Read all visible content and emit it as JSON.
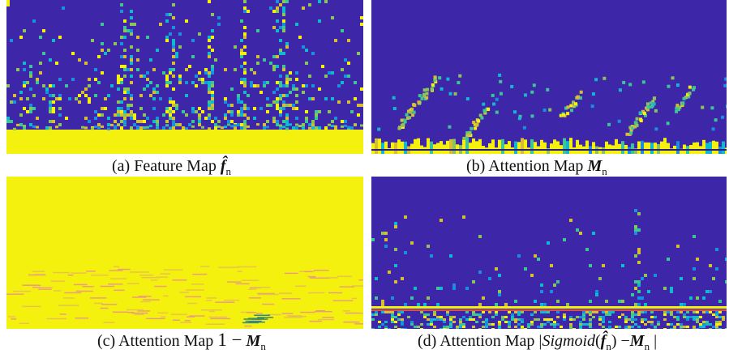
{
  "panels": [
    {
      "caption": {
        "label": "(a) Feature Map",
        "math": "f̂",
        "sub": "n"
      }
    },
    {
      "caption": {
        "label": "(b) Attention Map",
        "math": "M",
        "sub": "n"
      }
    },
    {
      "caption": {
        "label": "(c) Attention Map",
        "pre": "1 −",
        "math": "M",
        "sub": "n"
      }
    },
    {
      "caption": {
        "label": "(d) Attention Map |",
        "func": "Sigmoid",
        "open": "(",
        "math": "f̂",
        "sub": "n",
        "close": ") −",
        "math2": "M",
        "sub2": "n",
        "end": "|"
      }
    }
  ]
}
